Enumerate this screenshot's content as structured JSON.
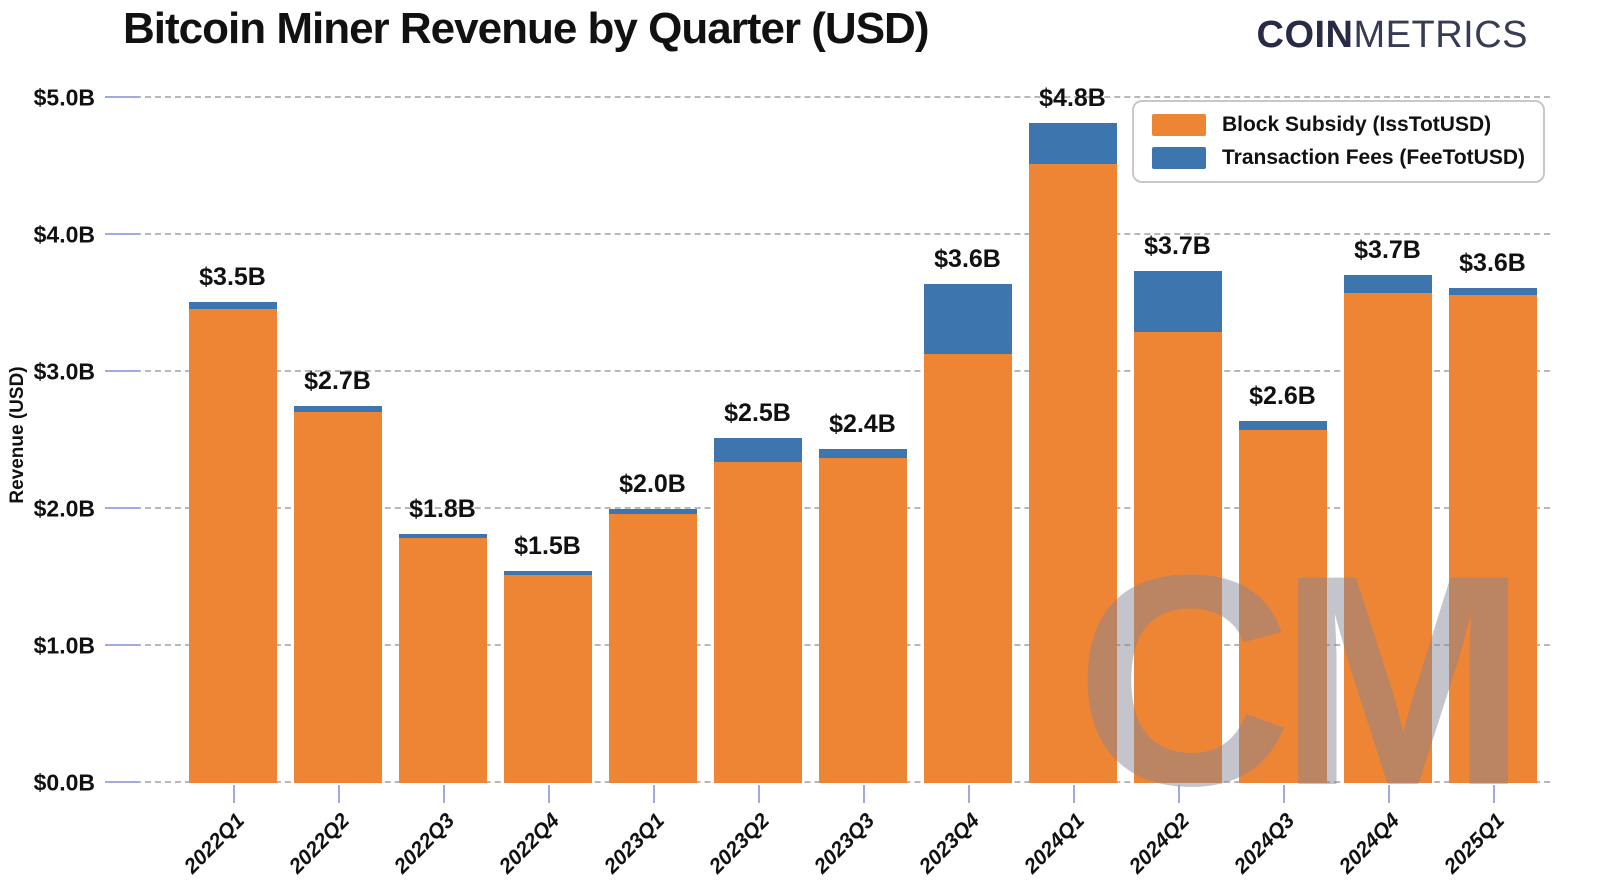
{
  "title": "Bitcoin Miner Revenue by Quarter (USD)",
  "logo": {
    "coin": "COIN",
    "metrics": "METRICS"
  },
  "watermark": "CM",
  "colors": {
    "block_subsidy": "#EE8535",
    "transaction_fees": "#3D76AE",
    "logo_navy": "#272b45",
    "gridline": "#b8b8b8",
    "tick_blue": "#9fa9e2"
  },
  "legend": {
    "items": [
      {
        "label": "Block Subsidy (IssTotUSD)",
        "color": "#EE8535"
      },
      {
        "label": "Transaction Fees (FeeTotUSD)",
        "color": "#3D76AE"
      }
    ]
  },
  "y_axis": {
    "title": "Revenue (USD)",
    "ticks": [
      "$0.0B",
      "$1.0B",
      "$2.0B",
      "$3.0B",
      "$4.0B",
      "$5.0B"
    ]
  },
  "chart_data": {
    "type": "bar",
    "stacked": true,
    "title": "Bitcoin Miner Revenue by Quarter (USD)",
    "xlabel": "",
    "ylabel": "Revenue (USD)",
    "ylim": [
      0,
      5.0
    ],
    "grid": "horizontal-dashed",
    "legend_position": "top-right",
    "categories": [
      "2022Q1",
      "2022Q2",
      "2022Q3",
      "2022Q4",
      "2023Q1",
      "2023Q2",
      "2023Q3",
      "2023Q4",
      "2024Q1",
      "2024Q2",
      "2024Q3",
      "2024Q4",
      "2025Q1"
    ],
    "series": [
      {
        "name": "Block Subsidy (IssTotUSD)",
        "color": "#EE8535",
        "values": [
          3.46,
          2.71,
          1.79,
          1.52,
          1.96,
          2.34,
          2.37,
          3.13,
          4.52,
          3.29,
          2.58,
          3.58,
          3.56
        ]
      },
      {
        "name": "Transaction Fees (FeeTotUSD)",
        "color": "#3D76AE",
        "values": [
          0.05,
          0.04,
          0.03,
          0.03,
          0.04,
          0.18,
          0.07,
          0.51,
          0.3,
          0.45,
          0.06,
          0.13,
          0.05
        ]
      }
    ],
    "total_labels": [
      "$3.5B",
      "$2.7B",
      "$1.8B",
      "$1.5B",
      "$2.0B",
      "$2.5B",
      "$2.4B",
      "$3.6B",
      "$4.8B",
      "$3.7B",
      "$2.6B",
      "$3.7B",
      "$3.6B"
    ]
  }
}
